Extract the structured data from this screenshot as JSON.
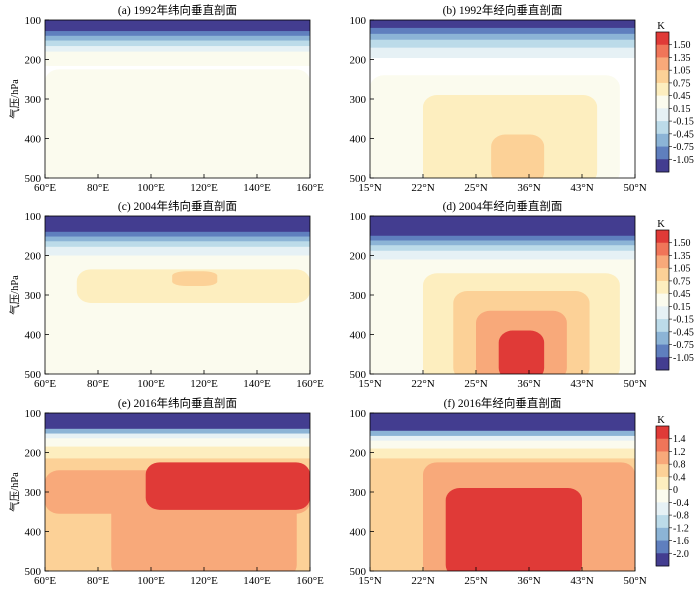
{
  "chart_data": [
    {
      "type": "heatmap",
      "title": "(a) 1992年纬向垂直剖面",
      "ylabel": "气压/hPa",
      "x_ticks": [
        "60°E",
        "80°E",
        "100°E",
        "120°E",
        "140°E",
        "160°E"
      ],
      "y_ticks": [
        "100",
        "200",
        "300",
        "400",
        "500"
      ],
      "xlim": [
        60,
        160
      ],
      "ylim": [
        100,
        500
      ],
      "legend_ref": 0,
      "bands": [
        {
          "level": -1.05,
          "from": 100,
          "to": 128
        },
        {
          "level": -0.75,
          "from": 128,
          "to": 140
        },
        {
          "level": -0.45,
          "from": 140,
          "to": 152
        },
        {
          "level": -0.15,
          "from": 152,
          "to": 166
        },
        {
          "level": 0.15,
          "from": 166,
          "to": 180
        },
        {
          "level": 0.45,
          "from": 180,
          "to": 215
        }
      ],
      "blobs": [
        {
          "level": 0.45,
          "x": [
            60,
            160
          ],
          "p": [
            225,
            500
          ]
        }
      ]
    },
    {
      "type": "heatmap",
      "title": "(b) 1992年经向垂直剖面",
      "ylabel": "",
      "x_ticks": [
        "15°N",
        "22°N",
        "25°N",
        "36°N",
        "43°N",
        "50°N"
      ],
      "y_ticks": [
        "100",
        "200",
        "300",
        "400",
        "500"
      ],
      "xlim": [
        15,
        50
      ],
      "ylim": [
        100,
        500
      ],
      "legend_ref": 0,
      "bands": [
        {
          "level": -1.05,
          "from": 100,
          "to": 120
        },
        {
          "level": -0.75,
          "from": 120,
          "to": 135
        },
        {
          "level": -0.45,
          "from": 135,
          "to": 150
        },
        {
          "level": -0.15,
          "from": 150,
          "to": 170
        },
        {
          "level": 0.15,
          "from": 170,
          "to": 195
        }
      ],
      "blobs": [
        {
          "level": 0.45,
          "x": [
            15,
            48
          ],
          "p": [
            240,
            500
          ]
        },
        {
          "level": 0.75,
          "x": [
            22,
            45
          ],
          "p": [
            290,
            500
          ]
        },
        {
          "level": 1.05,
          "x": [
            31,
            38
          ],
          "p": [
            390,
            500
          ]
        }
      ]
    },
    {
      "type": "heatmap",
      "title": "(c) 2004年纬向垂直剖面",
      "ylabel": "气压/hPa",
      "x_ticks": [
        "60°E",
        "80°E",
        "100°E",
        "120°E",
        "140°E",
        "160°E"
      ],
      "y_ticks": [
        "100",
        "200",
        "300",
        "400",
        "500"
      ],
      "xlim": [
        60,
        160
      ],
      "ylim": [
        100,
        500
      ],
      "legend_ref": 1,
      "bands": [
        {
          "level": -1.05,
          "from": 100,
          "to": 140
        },
        {
          "level": -0.75,
          "from": 140,
          "to": 152
        },
        {
          "level": -0.45,
          "from": 152,
          "to": 164
        },
        {
          "level": -0.15,
          "from": 164,
          "to": 178
        },
        {
          "level": 0.15,
          "from": 178,
          "to": 200
        },
        {
          "level": 0.45,
          "from": 200,
          "to": 500
        }
      ],
      "blobs": [
        {
          "level": 0.75,
          "x": [
            72,
            160
          ],
          "p": [
            235,
            305
          ]
        },
        {
          "level": 1.05,
          "x": [
            108,
            125
          ],
          "p": [
            240,
            262
          ]
        }
      ]
    },
    {
      "type": "heatmap",
      "title": "(d) 2004年经向垂直剖面",
      "ylabel": "",
      "x_ticks": [
        "15°N",
        "22°N",
        "25°N",
        "36°N",
        "43°N",
        "50°N"
      ],
      "y_ticks": [
        "100",
        "200",
        "300",
        "400",
        "500"
      ],
      "xlim": [
        15,
        50
      ],
      "ylim": [
        100,
        500
      ],
      "legend_ref": 1,
      "bands": [
        {
          "level": -1.05,
          "from": 100,
          "to": 150
        },
        {
          "level": -0.75,
          "from": 150,
          "to": 162
        },
        {
          "level": -0.45,
          "from": 162,
          "to": 174
        },
        {
          "level": -0.15,
          "from": 174,
          "to": 188
        },
        {
          "level": 0.15,
          "from": 188,
          "to": 210
        },
        {
          "level": 0.45,
          "from": 210,
          "to": 500
        }
      ],
      "blobs": [
        {
          "level": 0.75,
          "x": [
            22,
            48
          ],
          "p": [
            245,
            500
          ]
        },
        {
          "level": 1.05,
          "x": [
            26,
            44
          ],
          "p": [
            290,
            500
          ]
        },
        {
          "level": 1.35,
          "x": [
            29,
            41
          ],
          "p": [
            340,
            500
          ]
        },
        {
          "level": 1.5,
          "x": [
            32,
            38
          ],
          "p": [
            390,
            500
          ]
        }
      ]
    },
    {
      "type": "heatmap",
      "title": "(e) 2016年纬向垂直剖面",
      "ylabel": "气压/hPa",
      "x_ticks": [
        "60°E",
        "80°E",
        "100°E",
        "120°E",
        "140°E",
        "160°E"
      ],
      "y_ticks": [
        "100",
        "200",
        "300",
        "400",
        "500"
      ],
      "xlim": [
        60,
        160
      ],
      "ylim": [
        100,
        500
      ],
      "legend_ref": 2,
      "bands": [
        {
          "level": -2.0,
          "from": 100,
          "to": 140
        },
        {
          "level": -1.2,
          "from": 140,
          "to": 152
        },
        {
          "level": -0.4,
          "from": 152,
          "to": 164
        },
        {
          "level": 0.0,
          "from": 164,
          "to": 185
        },
        {
          "level": 0.4,
          "from": 185,
          "to": 215
        },
        {
          "level": 0.8,
          "from": 215,
          "to": 500
        }
      ],
      "blobs": [
        {
          "level": 1.2,
          "x": [
            60,
            160
          ],
          "p": [
            245,
            340
          ]
        },
        {
          "level": 1.2,
          "x": [
            85,
            155
          ],
          "p": [
            300,
            500
          ]
        },
        {
          "level": 1.4,
          "x": [
            98,
            160
          ],
          "p": [
            225,
            330
          ]
        }
      ]
    },
    {
      "type": "heatmap",
      "title": "(f) 2016年经向垂直剖面",
      "ylabel": "",
      "x_ticks": [
        "15°N",
        "22°N",
        "25°N",
        "36°N",
        "43°N",
        "50°N"
      ],
      "y_ticks": [
        "100",
        "200",
        "300",
        "400",
        "500"
      ],
      "xlim": [
        15,
        50
      ],
      "ylim": [
        100,
        500
      ],
      "legend_ref": 2,
      "bands": [
        {
          "level": -2.0,
          "from": 100,
          "to": 145
        },
        {
          "level": -1.2,
          "from": 145,
          "to": 158
        },
        {
          "level": -0.4,
          "from": 158,
          "to": 170
        },
        {
          "level": 0.0,
          "from": 170,
          "to": 190
        },
        {
          "level": 0.4,
          "from": 190,
          "to": 215
        },
        {
          "level": 0.8,
          "from": 215,
          "to": 500
        }
      ],
      "blobs": [
        {
          "level": 1.2,
          "x": [
            22,
            50
          ],
          "p": [
            225,
            500
          ]
        },
        {
          "level": 1.4,
          "x": [
            25,
            43
          ],
          "p": [
            290,
            500
          ]
        }
      ]
    }
  ],
  "legends": [
    {
      "unit": "K",
      "labels": [
        "1.50",
        "1.35",
        "1.05",
        "0.75",
        "0.45",
        "0.15",
        "-0.15",
        "-0.45",
        "-0.75",
        "-1.05"
      ],
      "colors": [
        "#e03a37",
        "#f07559",
        "#f8a97a",
        "#fcd197",
        "#fdeebf",
        "#fbfbee",
        "#e6f1f5",
        "#bcdbe9",
        "#8cb4d6",
        "#5f7fbe",
        "#433d90"
      ]
    },
    {
      "unit": "K",
      "labels": [
        "1.50",
        "1.35",
        "1.05",
        "0.75",
        "0.45",
        "0.15",
        "-0.15",
        "-0.45",
        "-0.75",
        "-1.05"
      ],
      "colors": [
        "#e03a37",
        "#f07559",
        "#f8a97a",
        "#fcd197",
        "#fdeebf",
        "#fbfbee",
        "#e6f1f5",
        "#bcdbe9",
        "#8cb4d6",
        "#5f7fbe",
        "#433d90"
      ]
    },
    {
      "unit": "K",
      "labels": [
        "1.4",
        "1.2",
        "0.8",
        "0.4",
        "0",
        "-0.4",
        "-0.8",
        "-1.2",
        "-1.6",
        "-2.0"
      ],
      "colors": [
        "#e03a37",
        "#f07559",
        "#f8a97a",
        "#fcd197",
        "#fdeebf",
        "#fbfbee",
        "#e6f1f5",
        "#bcdbe9",
        "#8cb4d6",
        "#5f7fbe",
        "#433d90"
      ]
    }
  ]
}
